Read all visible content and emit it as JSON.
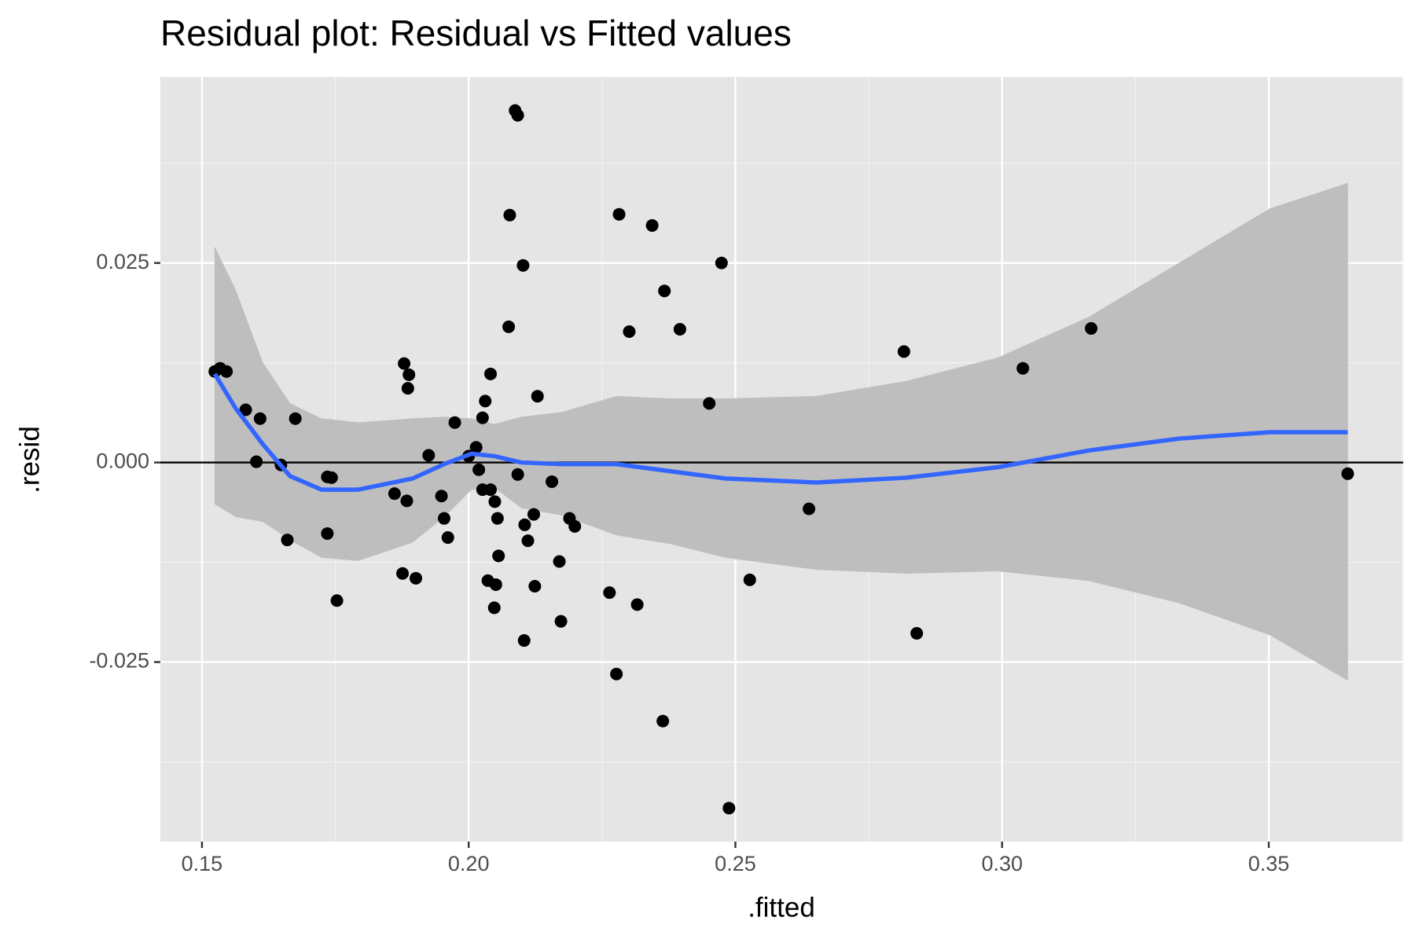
{
  "chart_data": {
    "type": "scatter",
    "title": "Residual plot: Residual vs Fitted values",
    "x_label": ".fitted",
    "y_label": ".resid",
    "xlim": [
      0.1422,
      0.3752
    ],
    "ylim": [
      -0.0475,
      0.0483
    ],
    "xticks": [
      0.15,
      {
        "value": 0.2,
        "label": "0.20"
      },
      0.25,
      {
        "value": 0.3,
        "label": "0.30"
      },
      0.35
    ],
    "yticks": [
      -0.025,
      {
        "value": 0,
        "label": "0.000"
      },
      0.025
    ],
    "xminor": [
      0.175,
      0.225,
      0.275,
      0.325,
      0.375
    ],
    "yminor": [
      -0.0375,
      -0.0125,
      0.0125,
      0.0375
    ],
    "grid": true,
    "hline": 0,
    "series": [
      {
        "type": "scatter",
        "color": "#000000",
        "x": [
          0.1524,
          0.1534,
          0.1546,
          0.1582,
          0.1609,
          0.1602,
          0.1648,
          0.166,
          0.1675,
          0.1735,
          0.1743,
          0.1735,
          0.1753,
          0.1861,
          0.1876,
          0.1879,
          0.1884,
          0.1888,
          0.1886,
          0.1901,
          0.1925,
          0.1949,
          0.1954,
          0.1961,
          0.1974,
          0.2,
          0.2014,
          0.2019,
          0.2026,
          0.2026,
          0.2031,
          0.2041,
          0.2041,
          0.2036,
          0.2049,
          0.2051,
          0.2048,
          0.2054,
          0.2056,
          0.2075,
          0.2077,
          0.2087,
          0.2092,
          0.2092,
          0.2102,
          0.2105,
          0.2104,
          0.2111,
          0.2122,
          0.2124,
          0.2129,
          0.2156,
          0.217,
          0.2173,
          0.2189,
          0.2199,
          0.2264,
          0.2282,
          0.2277,
          0.2301,
          0.2316,
          0.2344,
          0.2367,
          0.2364,
          0.2396,
          0.2451,
          0.2474,
          0.2488,
          0.2527,
          0.2638,
          0.2816,
          0.284,
          0.3039,
          0.3167,
          0.3648
        ],
        "values": [
          0.0114,
          0.0118,
          0.0114,
          0.0066,
          0.0055,
          0.0001,
          -0.0003,
          -0.0097,
          0.0055,
          -0.0018,
          -0.0019,
          -0.0089,
          -0.0173,
          -0.0039,
          -0.0139,
          0.0124,
          -0.0048,
          0.011,
          0.0093,
          -0.0145,
          0.0009,
          -0.0042,
          -0.007,
          -0.0094,
          0.005,
          0.0008,
          0.0019,
          -0.0009,
          0.0056,
          -0.0034,
          0.0077,
          -0.0034,
          0.0111,
          -0.0148,
          -0.0049,
          -0.0153,
          -0.0182,
          -0.007,
          -0.0117,
          0.017,
          0.031,
          0.0441,
          0.0435,
          -0.0015,
          0.0247,
          -0.0078,
          -0.0223,
          -0.0098,
          -0.0065,
          -0.0155,
          0.0083,
          -0.0024,
          -0.0124,
          -0.0199,
          -0.007,
          -0.008,
          -0.0163,
          0.0311,
          -0.0265,
          0.0164,
          -0.0178,
          0.0297,
          0.0215,
          -0.0324,
          0.0167,
          0.0074,
          0.025,
          -0.0433,
          -0.0147,
          -0.0058,
          0.0139,
          -0.0214,
          0.0118,
          0.0168,
          -0.0014
        ]
      },
      {
        "type": "band",
        "color": "#bebebe",
        "x": [
          0.1524,
          0.1563,
          0.1614,
          0.1665,
          0.1724,
          0.1793,
          0.1895,
          0.1954,
          0.2005,
          0.2048,
          0.2099,
          0.2175,
          0.2277,
          0.2379,
          0.2481,
          0.2651,
          0.2821,
          0.2991,
          0.3162,
          0.3332,
          0.3502,
          0.3648
        ],
        "upper": [
          0.027,
          0.0216,
          0.0125,
          0.0074,
          0.0055,
          0.005,
          0.0055,
          0.0057,
          0.0055,
          0.0048,
          0.0057,
          0.0063,
          0.0083,
          0.008,
          0.008,
          0.0083,
          0.0102,
          0.0131,
          0.0182,
          0.025,
          0.0318,
          0.035
        ],
        "lower": [
          -0.0052,
          -0.0068,
          -0.0074,
          -0.0097,
          -0.0119,
          -0.0123,
          -0.01,
          -0.0068,
          -0.0034,
          -0.0031,
          -0.0057,
          -0.0066,
          -0.0091,
          -0.0102,
          -0.0119,
          -0.0134,
          -0.0139,
          -0.0136,
          -0.0148,
          -0.0176,
          -0.0216,
          -0.0273
        ]
      },
      {
        "type": "line",
        "color": "#3366ff",
        "x": [
          0.1524,
          0.1563,
          0.1614,
          0.1665,
          0.1724,
          0.1793,
          0.1895,
          0.1954,
          0.2005,
          0.2048,
          0.2099,
          0.2175,
          0.2277,
          0.2379,
          0.2481,
          0.2651,
          0.2821,
          0.2991,
          0.3162,
          0.3332,
          0.3502,
          0.3648
        ],
        "values": [
          0.0111,
          0.0068,
          0.0023,
          -0.0017,
          -0.0034,
          -0.0034,
          -0.002,
          -0.0002,
          0.0011,
          0.0008,
          0.0,
          -0.0002,
          -0.0002,
          -0.0011,
          -0.002,
          -0.0025,
          -0.0019,
          -0.0006,
          0.0015,
          0.003,
          0.0038,
          0.0038
        ]
      }
    ]
  }
}
